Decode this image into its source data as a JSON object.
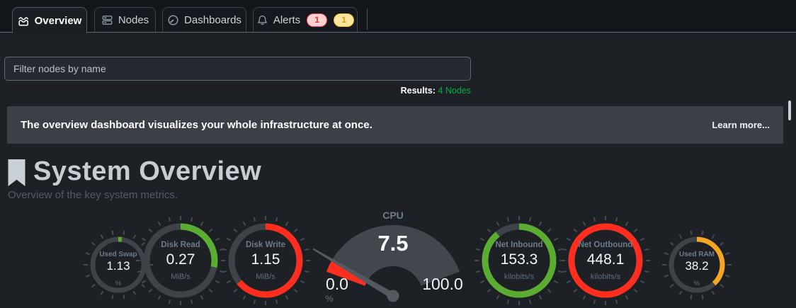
{
  "tabs": [
    {
      "label": "Overview",
      "icon": "area-chart-icon",
      "active": true
    },
    {
      "label": "Nodes",
      "icon": "nodes-icon",
      "active": false
    },
    {
      "label": "Dashboards",
      "icon": "gauge-icon",
      "active": false
    },
    {
      "label": "Alerts",
      "icon": "bell-icon",
      "active": false,
      "badges": {
        "critical": "1",
        "warning": "1"
      }
    }
  ],
  "filter": {
    "placeholder": "Filter nodes by name",
    "value": ""
  },
  "results": {
    "label": "Results:",
    "value": "4 Nodes"
  },
  "banner": {
    "message": "The overview dashboard visualizes your whole infrastructure at once.",
    "link_label": "Learn more..."
  },
  "section": {
    "title": "System Overview",
    "subtitle": "Overview of the key system metrics.",
    "icon": "bookmark-icon"
  },
  "colors": {
    "accent_green": "#5bad31",
    "accent_red": "#fe2e1f",
    "accent_orange": "#f6a522",
    "results_green": "#00ab44",
    "track": "#3e4348",
    "tick": "#454b51",
    "gauge_fan": "#42474d",
    "needle": "#54595f"
  },
  "chart_data": {
    "type": "gauge-row",
    "title": "System Overview",
    "gauges": [
      {
        "id": "used-swap",
        "kind": "ring",
        "label": "Used Swap",
        "value": 1.13,
        "display": "1.13",
        "unit": "%",
        "color": "#5bad31",
        "fraction": 0.022,
        "size": "small"
      },
      {
        "id": "disk-read",
        "kind": "ring",
        "label": "Disk Read",
        "value": 0.27,
        "display": "0.27",
        "unit": "MiB/s",
        "color": "#5bad31",
        "fraction": 0.28,
        "size": "large"
      },
      {
        "id": "disk-write",
        "kind": "ring",
        "label": "Disk Write",
        "value": 1.15,
        "display": "1.15",
        "unit": "MiB/s",
        "color": "#fe2e1f",
        "fraction": 0.64,
        "size": "large"
      },
      {
        "id": "cpu",
        "kind": "needle-gauge",
        "label": "CPU",
        "value": 7.5,
        "display": "7.5",
        "unit": "%",
        "min": "0.0",
        "max": "100.0",
        "min_value": 0,
        "max_value": 100,
        "color": "#fe2e1f",
        "fraction": 0.075
      },
      {
        "id": "net-inbound",
        "kind": "ring",
        "label": "Net Inbound",
        "value": 153.3,
        "display": "153.3",
        "unit": "kilobits/s",
        "color": "#5bad31",
        "fraction": 0.89,
        "size": "large"
      },
      {
        "id": "net-outbound",
        "kind": "ring",
        "label": "Net Outbound",
        "value": 448.1,
        "display": "448.1",
        "unit": "kilobits/s",
        "color": "#fe2e1f",
        "fraction": 1.0,
        "size": "large"
      },
      {
        "id": "used-ram",
        "kind": "ring",
        "label": "Used RAM",
        "value": 38.2,
        "display": "38.2",
        "unit": "%",
        "color": "#f6a522",
        "fraction": 0.382,
        "size": "small"
      }
    ]
  }
}
